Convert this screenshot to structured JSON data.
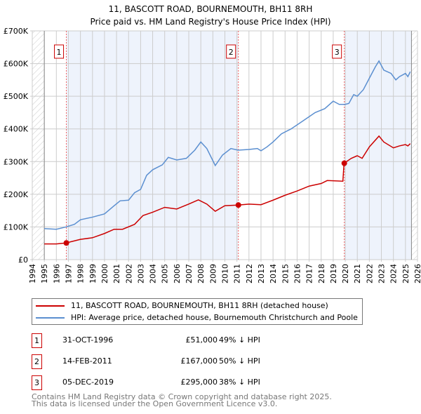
{
  "chart_data": {
    "type": "line",
    "title": "11, BASCOTT ROAD, BOURNEMOUTH, BH11 8RH",
    "subtitle": "Price paid vs. HM Land Registry's House Price Index (HPI)",
    "xlim": [
      1994,
      2026
    ],
    "ylim": [
      0,
      700000
    ],
    "x_ticks": [
      "1994",
      "1995",
      "1996",
      "1997",
      "1998",
      "1999",
      "2000",
      "2001",
      "2002",
      "2003",
      "2004",
      "2005",
      "2006",
      "2007",
      "2008",
      "2009",
      "2010",
      "2011",
      "2012",
      "2013",
      "2014",
      "2015",
      "2016",
      "2017",
      "2018",
      "2019",
      "2020",
      "2021",
      "2022",
      "2023",
      "2024",
      "2025",
      "2026"
    ],
    "y_ticks": [
      {
        "v": 0,
        "l": "£0"
      },
      {
        "v": 100000,
        "l": "£100K"
      },
      {
        "v": 200000,
        "l": "£200K"
      },
      {
        "v": 300000,
        "l": "£300K"
      },
      {
        "v": 400000,
        "l": "£400K"
      },
      {
        "v": 500000,
        "l": "£500K"
      },
      {
        "v": 600000,
        "l": "£600K"
      },
      {
        "v": 700000,
        "l": "£700K"
      }
    ],
    "grid": true,
    "series": [
      {
        "name": "11, BASCOTT ROAD, BOURNEMOUTH, BH11 8RH (detached house)",
        "color": "#cc0000",
        "x": [
          1995,
          1996,
          1996.8,
          1998,
          1999,
          2000,
          2000.8,
          2001.5,
          2002.5,
          2003.2,
          2004,
          2005,
          2006,
          2007,
          2007.8,
          2008.5,
          2009.2,
          2010,
          2011.1,
          2012,
          2013,
          2014,
          2015,
          2016,
          2017,
          2018,
          2018.5,
          2019.8,
          2019.9,
          2020.5,
          2021,
          2021.4,
          2022,
          2022.8,
          2023.2,
          2024,
          2024.5,
          2025,
          2025.2,
          2025.4
        ],
        "y": [
          48000,
          48000,
          51000,
          62000,
          67000,
          80000,
          93000,
          93000,
          108000,
          135000,
          145000,
          160000,
          155000,
          170000,
          183000,
          170000,
          148000,
          165000,
          167000,
          170000,
          168000,
          182000,
          197000,
          210000,
          225000,
          233000,
          242000,
          240000,
          295000,
          310000,
          318000,
          310000,
          345000,
          378000,
          360000,
          342000,
          348000,
          352000,
          348000,
          355000
        ]
      },
      {
        "name": "HPI: Average price, detached house, Bournemouth Christchurch and Poole",
        "color": "#5b8fd0",
        "x": [
          1995,
          1996,
          1996.8,
          1997.5,
          1998,
          1999,
          2000,
          2000.8,
          2001.3,
          2002,
          2002.5,
          2003,
          2003.5,
          2004,
          2004.8,
          2005.3,
          2006,
          2006.8,
          2007.5,
          2008,
          2008.5,
          2009.2,
          2009.8,
          2010.5,
          2011.1,
          2012,
          2012.7,
          2013,
          2013.5,
          2014,
          2014.7,
          2015.5,
          2016.5,
          2017.5,
          2018.3,
          2019,
          2019.5,
          2020,
          2020.3,
          2020.7,
          2021,
          2021.5,
          2022,
          2022.5,
          2022.8,
          2023.2,
          2023.8,
          2024.2,
          2024.5,
          2025,
          2025.2,
          2025.4
        ],
        "y": [
          95000,
          93000,
          100000,
          108000,
          122000,
          130000,
          140000,
          165000,
          180000,
          182000,
          205000,
          215000,
          258000,
          275000,
          290000,
          313000,
          305000,
          310000,
          335000,
          360000,
          340000,
          288000,
          320000,
          340000,
          335000,
          337000,
          340000,
          333000,
          345000,
          360000,
          385000,
          400000,
          425000,
          450000,
          462000,
          485000,
          475000,
          475000,
          478000,
          505000,
          500000,
          520000,
          555000,
          590000,
          608000,
          580000,
          570000,
          550000,
          560000,
          570000,
          560000,
          575000
        ]
      }
    ],
    "sales": [
      {
        "num": "1",
        "x": 1996.83,
        "y": 51000,
        "date": "31-OCT-1996",
        "price": "£51,000",
        "diff": "49% ↓ HPI"
      },
      {
        "num": "2",
        "x": 2011.12,
        "y": 167000,
        "date": "14-FEB-2011",
        "price": "£167,000",
        "diff": "50% ↓ HPI"
      },
      {
        "num": "3",
        "x": 2019.92,
        "y": 295000,
        "date": "05-DEC-2019",
        "price": "£295,000",
        "diff": "38% ↓ HPI"
      }
    ],
    "shaded": [
      [
        1996.83,
        2011.12
      ],
      [
        2019.92,
        2025.5
      ]
    ],
    "hatched": [
      [
        1994,
        1995
      ],
      [
        2025.5,
        2026
      ]
    ]
  },
  "footer": {
    "line1": "Contains HM Land Registry data © Crown copyright and database right 2025.",
    "line2": "This data is licensed under the Open Government Licence v3.0."
  }
}
